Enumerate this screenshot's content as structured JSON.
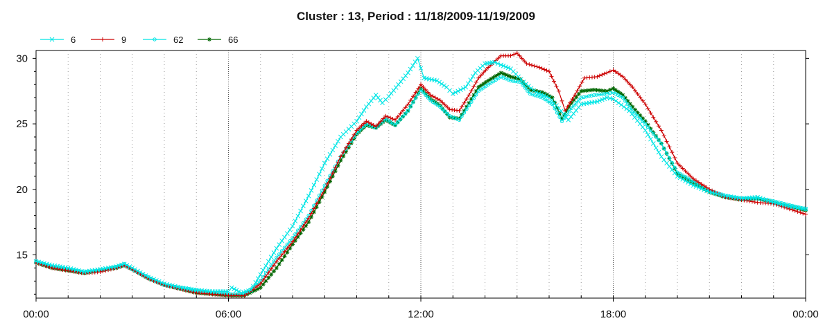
{
  "chart_data": {
    "type": "line",
    "title": "Cluster : 13, Period : 11/18/2009-11/19/2009",
    "x_unit": "hours",
    "x_ticks": [
      {
        "value": 0,
        "label": "00:00"
      },
      {
        "value": 6,
        "label": "06:00"
      },
      {
        "value": 12,
        "label": "12:00"
      },
      {
        "value": 18,
        "label": "18:00"
      },
      {
        "value": 24,
        "label": "00:00"
      }
    ],
    "y_ticks": [
      15,
      20,
      25,
      30
    ],
    "xlim": [
      0,
      24
    ],
    "ylim": [
      11.7,
      30.6
    ],
    "grid": "dotted vertical",
    "legend_position": "top-left",
    "series": [
      {
        "name": "6",
        "color": "#00e5e5",
        "marker": "x",
        "points": [
          [
            0,
            14.5
          ],
          [
            0.5,
            14.2
          ],
          [
            1,
            14.0
          ],
          [
            1.5,
            13.7
          ],
          [
            2,
            13.9
          ],
          [
            2.5,
            14.1
          ],
          [
            2.75,
            14.3
          ],
          [
            3,
            14.0
          ],
          [
            3.5,
            13.3
          ],
          [
            4,
            12.8
          ],
          [
            4.5,
            12.5
          ],
          [
            5,
            12.3
          ],
          [
            5.5,
            12.2
          ],
          [
            6,
            12.2
          ],
          [
            6.1,
            12.5
          ],
          [
            6.4,
            12.1
          ],
          [
            6.7,
            12.3
          ],
          [
            7,
            13.5
          ],
          [
            7.5,
            15.5
          ],
          [
            8,
            17.2
          ],
          [
            8.5,
            19.5
          ],
          [
            9,
            22.0
          ],
          [
            9.5,
            24.0
          ],
          [
            10,
            25.2
          ],
          [
            10.3,
            26.3
          ],
          [
            10.6,
            27.2
          ],
          [
            10.8,
            26.6
          ],
          [
            11,
            27.1
          ],
          [
            11.3,
            28.0
          ],
          [
            11.6,
            28.9
          ],
          [
            11.9,
            30.0
          ],
          [
            12.1,
            28.5
          ],
          [
            12.5,
            28.3
          ],
          [
            12.8,
            27.8
          ],
          [
            13,
            27.3
          ],
          [
            13.4,
            27.8
          ],
          [
            13.7,
            28.9
          ],
          [
            14,
            29.6
          ],
          [
            14.3,
            29.7
          ],
          [
            14.5,
            29.5
          ],
          [
            14.8,
            29.2
          ],
          [
            15.2,
            28.2
          ],
          [
            15.6,
            27.4
          ],
          [
            16,
            27.0
          ],
          [
            16.3,
            26.2
          ],
          [
            16.6,
            25.3
          ],
          [
            17,
            26.5
          ],
          [
            17.5,
            26.7
          ],
          [
            17.8,
            27.0
          ],
          [
            18,
            26.9
          ],
          [
            18.5,
            26.0
          ],
          [
            19,
            24.5
          ],
          [
            19.5,
            22.5
          ],
          [
            20,
            21.0
          ],
          [
            20.5,
            20.3
          ],
          [
            21,
            19.8
          ],
          [
            21.5,
            19.5
          ],
          [
            22,
            19.3
          ],
          [
            22.5,
            19.4
          ],
          [
            23,
            19.0
          ],
          [
            23.5,
            18.7
          ],
          [
            24,
            18.5
          ]
        ]
      },
      {
        "name": "9",
        "color": "#cc0000",
        "marker": "+",
        "points": [
          [
            0,
            14.4
          ],
          [
            0.5,
            14.0
          ],
          [
            1,
            13.8
          ],
          [
            1.5,
            13.6
          ],
          [
            2,
            13.7
          ],
          [
            2.5,
            14.0
          ],
          [
            2.75,
            14.2
          ],
          [
            3,
            13.9
          ],
          [
            3.5,
            13.2
          ],
          [
            4,
            12.7
          ],
          [
            4.5,
            12.4
          ],
          [
            5,
            12.1
          ],
          [
            5.5,
            12.0
          ],
          [
            6,
            11.9
          ],
          [
            6.5,
            11.9
          ],
          [
            7,
            12.8
          ],
          [
            7.5,
            14.5
          ],
          [
            8,
            16.0
          ],
          [
            8.5,
            17.8
          ],
          [
            9,
            20.0
          ],
          [
            9.5,
            22.5
          ],
          [
            10,
            24.5
          ],
          [
            10.3,
            25.2
          ],
          [
            10.6,
            24.8
          ],
          [
            10.9,
            25.6
          ],
          [
            11.2,
            25.3
          ],
          [
            11.6,
            26.5
          ],
          [
            12,
            28.0
          ],
          [
            12.3,
            27.2
          ],
          [
            12.6,
            26.8
          ],
          [
            12.9,
            26.1
          ],
          [
            13.2,
            26.0
          ],
          [
            13.5,
            27.2
          ],
          [
            13.8,
            28.5
          ],
          [
            14.1,
            29.3
          ],
          [
            14.5,
            30.2
          ],
          [
            14.8,
            30.2
          ],
          [
            15,
            30.4
          ],
          [
            15.3,
            29.6
          ],
          [
            15.7,
            29.3
          ],
          [
            16,
            29.0
          ],
          [
            16.3,
            27.5
          ],
          [
            16.5,
            26.0
          ],
          [
            16.8,
            27.2
          ],
          [
            17.1,
            28.5
          ],
          [
            17.5,
            28.6
          ],
          [
            17.8,
            28.9
          ],
          [
            18,
            29.1
          ],
          [
            18.3,
            28.6
          ],
          [
            18.6,
            27.8
          ],
          [
            19,
            26.5
          ],
          [
            19.5,
            24.5
          ],
          [
            20,
            22.0
          ],
          [
            20.5,
            20.8
          ],
          [
            21,
            20.0
          ],
          [
            21.5,
            19.4
          ],
          [
            22,
            19.2
          ],
          [
            22.5,
            19.0
          ],
          [
            23,
            18.9
          ],
          [
            23.5,
            18.5
          ],
          [
            24,
            18.1
          ]
        ]
      },
      {
        "name": "62",
        "color": "#00e5e5",
        "marker": "o",
        "points": [
          [
            0,
            14.5
          ],
          [
            0.5,
            14.1
          ],
          [
            1,
            13.9
          ],
          [
            1.5,
            13.7
          ],
          [
            2,
            13.8
          ],
          [
            2.5,
            14.1
          ],
          [
            2.75,
            14.3
          ],
          [
            3,
            13.9
          ],
          [
            3.5,
            13.3
          ],
          [
            4,
            12.7
          ],
          [
            4.5,
            12.5
          ],
          [
            5,
            12.3
          ],
          [
            5.5,
            12.1
          ],
          [
            6,
            12.0
          ],
          [
            6.5,
            12.0
          ],
          [
            7,
            13.0
          ],
          [
            7.5,
            14.8
          ],
          [
            8,
            16.3
          ],
          [
            8.5,
            18.0
          ],
          [
            9,
            20.3
          ],
          [
            9.5,
            22.5
          ],
          [
            10,
            24.3
          ],
          [
            10.3,
            25.0
          ],
          [
            10.6,
            24.7
          ],
          [
            10.9,
            25.4
          ],
          [
            11.2,
            24.9
          ],
          [
            11.6,
            26.0
          ],
          [
            12,
            27.6
          ],
          [
            12.3,
            26.8
          ],
          [
            12.6,
            26.3
          ],
          [
            12.9,
            25.6
          ],
          [
            13.2,
            25.3
          ],
          [
            13.5,
            26.4
          ],
          [
            13.8,
            27.5
          ],
          [
            14.1,
            28.0
          ],
          [
            14.5,
            28.6
          ],
          [
            14.8,
            28.3
          ],
          [
            15.1,
            28.2
          ],
          [
            15.4,
            27.3
          ],
          [
            15.8,
            27.0
          ],
          [
            16.1,
            26.5
          ],
          [
            16.4,
            25.2
          ],
          [
            16.7,
            26.2
          ],
          [
            17,
            27.0
          ],
          [
            17.4,
            27.2
          ],
          [
            17.8,
            27.3
          ],
          [
            18,
            27.4
          ],
          [
            18.3,
            27.0
          ],
          [
            18.6,
            26.0
          ],
          [
            19,
            25.0
          ],
          [
            19.5,
            23.5
          ],
          [
            20,
            21.3
          ],
          [
            20.5,
            20.6
          ],
          [
            21,
            19.9
          ],
          [
            21.5,
            19.5
          ],
          [
            22,
            19.3
          ],
          [
            22.5,
            19.3
          ],
          [
            23,
            19.1
          ],
          [
            23.5,
            18.8
          ],
          [
            24,
            18.5
          ]
        ]
      },
      {
        "name": "66",
        "color": "#006600",
        "marker": "*",
        "points": [
          [
            0,
            14.4
          ],
          [
            0.5,
            14.0
          ],
          [
            1,
            13.8
          ],
          [
            1.5,
            13.6
          ],
          [
            2,
            13.8
          ],
          [
            2.5,
            14.0
          ],
          [
            2.75,
            14.2
          ],
          [
            3,
            13.9
          ],
          [
            3.5,
            13.2
          ],
          [
            4,
            12.7
          ],
          [
            4.5,
            12.4
          ],
          [
            5,
            12.1
          ],
          [
            5.5,
            12.0
          ],
          [
            6,
            11.9
          ],
          [
            6.5,
            11.9
          ],
          [
            7,
            12.5
          ],
          [
            7.5,
            14.0
          ],
          [
            8,
            15.8
          ],
          [
            8.5,
            17.5
          ],
          [
            9,
            19.8
          ],
          [
            9.5,
            22.2
          ],
          [
            10,
            24.2
          ],
          [
            10.3,
            24.9
          ],
          [
            10.6,
            24.7
          ],
          [
            10.9,
            25.3
          ],
          [
            11.2,
            24.9
          ],
          [
            11.6,
            26.0
          ],
          [
            12,
            27.7
          ],
          [
            12.3,
            26.9
          ],
          [
            12.6,
            26.4
          ],
          [
            12.9,
            25.5
          ],
          [
            13.2,
            25.4
          ],
          [
            13.5,
            26.6
          ],
          [
            13.8,
            27.8
          ],
          [
            14.1,
            28.3
          ],
          [
            14.5,
            28.9
          ],
          [
            14.8,
            28.6
          ],
          [
            15.1,
            28.4
          ],
          [
            15.4,
            27.6
          ],
          [
            15.8,
            27.4
          ],
          [
            16.1,
            27.0
          ],
          [
            16.4,
            25.4
          ],
          [
            16.7,
            26.6
          ],
          [
            17,
            27.5
          ],
          [
            17.4,
            27.6
          ],
          [
            17.8,
            27.5
          ],
          [
            18,
            27.7
          ],
          [
            18.3,
            27.2
          ],
          [
            18.6,
            26.3
          ],
          [
            19,
            25.2
          ],
          [
            19.5,
            23.5
          ],
          [
            20,
            21.2
          ],
          [
            20.5,
            20.5
          ],
          [
            21,
            19.8
          ],
          [
            21.5,
            19.4
          ],
          [
            22,
            19.2
          ],
          [
            22.5,
            19.3
          ],
          [
            23,
            19.0
          ],
          [
            23.5,
            18.7
          ],
          [
            24,
            18.4
          ]
        ]
      }
    ]
  }
}
